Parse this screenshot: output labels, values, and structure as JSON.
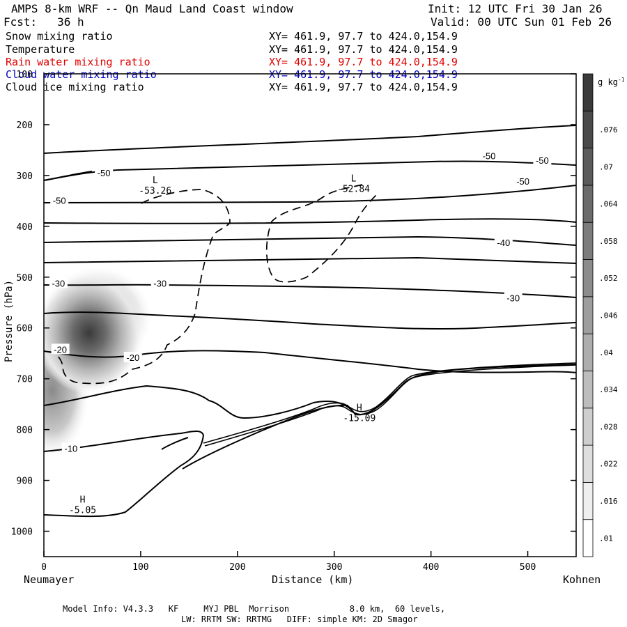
{
  "header": {
    "title": "AMPS 8-km WRF -- Qn Maud Land Coast window",
    "init": "Init: 12 UTC Fri 30 Jan 26",
    "fcst": "Fcst:   36 h",
    "valid": "Valid: 00 UTC Sun 01 Feb 26"
  },
  "fields": [
    {
      "name": "Snow mixing ratio",
      "xy": "XY= 461.9, 97.7 to 424.0,154.9",
      "color": "#000000"
    },
    {
      "name": "Temperature",
      "xy": "XY= 461.9, 97.7 to 424.0,154.9",
      "color": "#000000"
    },
    {
      "name": "Rain water mixing ratio",
      "xy": "XY= 461.9, 97.7 to 424.0,154.9",
      "color": "#e00000"
    },
    {
      "name": "Cloud water mixing ratio",
      "xy": "XY= 461.9, 97.7 to 424.0,154.9",
      "color": "#0000c0"
    },
    {
      "name": "Cloud ice mixing ratio",
      "xy": "XY= 461.9, 97.7 to 424.0,154.9",
      "color": "#000000"
    }
  ],
  "chart_data": {
    "type": "cross-section contour",
    "xlabel": "Distance (km)",
    "ylabel": "Pressure (hPa)",
    "xlim": [
      0,
      550
    ],
    "ylim": [
      1050,
      100
    ],
    "x_ticks": [
      0,
      100,
      200,
      300,
      400,
      500
    ],
    "y_ticks": [
      1000,
      900,
      800,
      700,
      600,
      500,
      400,
      300,
      200,
      100
    ],
    "left_endpoint": "Neumayer",
    "right_endpoint": "Kohnen",
    "colorbar": {
      "unit": "g kg",
      "unit_exp": "-1",
      "levels": [
        ".01",
        ".016",
        ".022",
        ".028",
        ".034",
        ".04",
        ".046",
        ".052",
        ".058",
        ".064",
        ".07",
        ".076"
      ]
    },
    "snow_max": {
      "x": 55,
      "p": 610,
      "value": 0.05
    },
    "temperature_labels": [
      {
        "text": "-50",
        "x": 62,
        "p": 295
      },
      {
        "text": "-50",
        "x": 460,
        "p": 261
      },
      {
        "text": "-50",
        "x": 515,
        "p": 270
      },
      {
        "text": "-50",
        "x": 495,
        "p": 311
      },
      {
        "text": "-50",
        "x": 16,
        "p": 349
      },
      {
        "text": "-40",
        "x": 475,
        "p": 432
      },
      {
        "text": "-30",
        "x": 15,
        "p": 512
      },
      {
        "text": "-30",
        "x": 120,
        "p": 512
      },
      {
        "text": "-30",
        "x": 485,
        "p": 541
      },
      {
        "text": "-20",
        "x": 17,
        "p": 642
      },
      {
        "text": "-20",
        "x": 92,
        "p": 658
      },
      {
        "text": "-10",
        "x": 28,
        "p": 837
      }
    ],
    "extrema": [
      {
        "kind": "L",
        "value": "-53.26",
        "x": 115,
        "p": 326
      },
      {
        "kind": "L",
        "value": "-52.84",
        "x": 320,
        "p": 323
      },
      {
        "kind": "H",
        "value": "-15.09",
        "x": 326,
        "p": 774
      },
      {
        "kind": "H",
        "value": "-5.05",
        "x": 40,
        "p": 955
      }
    ]
  },
  "footer": {
    "line1": "Model Info: V4.3.3   KF     MYJ PBL  Morrison            8.0 km,  60 levels,",
    "line2": "LW: RRTM SW: RRTMG   DIFF: simple KM: 2D Smagor"
  }
}
